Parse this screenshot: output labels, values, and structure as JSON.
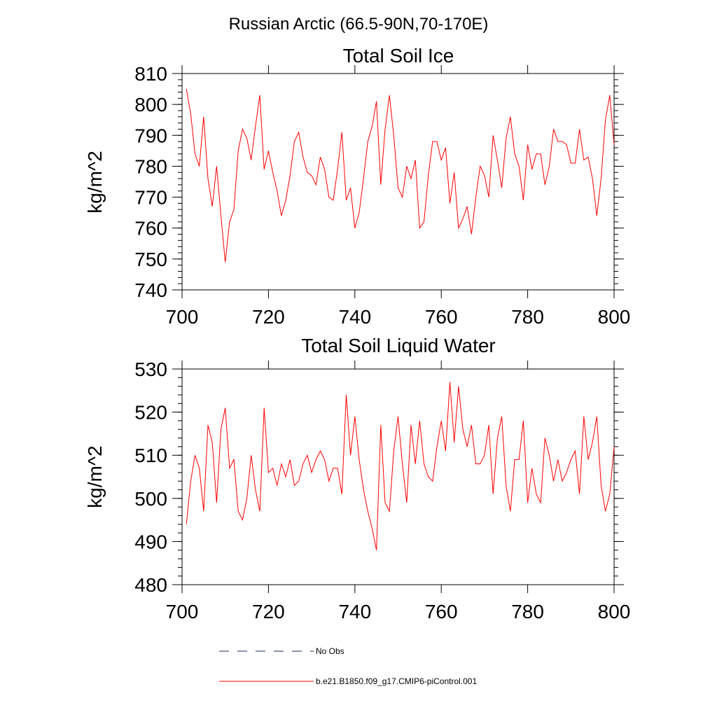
{
  "figure": {
    "title": "Russian Arctic (66.5-90N,70-170E)"
  },
  "chart_data": [
    {
      "type": "line",
      "title": "Total Soil Ice",
      "xlabel": "",
      "ylabel": "kg/m^2",
      "xlim": [
        700,
        800
      ],
      "ylim": [
        740,
        810
      ],
      "xticks": [
        700,
        720,
        740,
        760,
        780,
        800
      ],
      "yticks": [
        740,
        750,
        760,
        770,
        780,
        790,
        800,
        810
      ],
      "x_start": 701,
      "series": [
        {
          "name": "b.e21.B1850.f09_g17.CMIP6-piControl.001",
          "color": "#ff0000",
          "values": [
            805,
            797,
            784,
            780,
            796,
            776,
            767,
            780,
            764,
            749,
            762,
            766,
            785,
            792,
            789,
            782,
            793,
            803,
            779,
            785,
            778,
            772,
            764,
            769,
            777,
            788,
            791,
            783,
            778,
            777,
            774,
            783,
            779,
            770,
            769,
            779,
            791,
            769,
            773,
            760,
            765,
            776,
            788,
            793,
            801,
            774,
            792,
            803,
            790,
            773,
            770,
            780,
            776,
            782,
            760,
            762,
            777,
            788,
            788,
            782,
            786,
            768,
            778,
            760,
            763,
            767,
            758,
            770,
            780,
            777,
            770,
            790,
            782,
            773,
            789,
            796,
            784,
            780,
            769,
            787,
            779,
            784,
            784,
            774,
            780,
            792,
            788,
            788,
            787,
            781,
            781,
            792,
            782,
            783,
            776,
            764,
            776,
            795,
            803,
            787
          ]
        }
      ]
    },
    {
      "type": "line",
      "title": "Total Soil Liquid Water",
      "xlabel": "",
      "ylabel": "kg/m^2",
      "xlim": [
        700,
        800
      ],
      "ylim": [
        480,
        530
      ],
      "xticks": [
        700,
        720,
        740,
        760,
        780,
        800
      ],
      "yticks": [
        480,
        490,
        500,
        510,
        520,
        530
      ],
      "x_start": 701,
      "series": [
        {
          "name": "b.e21.B1850.f09_g17.CMIP6-piControl.001",
          "color": "#ff0000",
          "values": [
            494,
            504,
            510,
            507,
            497,
            517,
            513,
            499,
            516,
            521,
            507,
            509,
            497,
            495,
            500,
            510,
            502,
            497,
            521,
            506,
            507,
            503,
            508,
            505,
            509,
            503,
            504,
            508,
            510,
            506,
            509,
            511,
            509,
            504,
            507,
            507,
            501,
            524,
            510,
            519,
            509,
            502,
            497,
            493,
            488,
            517,
            499,
            497,
            511,
            519,
            508,
            499,
            517,
            508,
            518,
            508,
            505,
            504,
            512,
            518,
            511,
            527,
            513,
            526,
            516,
            512,
            517,
            508,
            508,
            510,
            517,
            501,
            514,
            519,
            503,
            497,
            509,
            509,
            518,
            499,
            507,
            501,
            499,
            514,
            510,
            504,
            509,
            504,
            506,
            509,
            511,
            501,
            519,
            509,
            513,
            519,
            503,
            497,
            501,
            512
          ]
        }
      ]
    }
  ],
  "legend": {
    "entries": [
      {
        "label": "No Obs",
        "color": "#1e2a5a",
        "style": "dashed"
      },
      {
        "label": "b.e21.B1850.f09_g17.CMIP6-piControl.001",
        "color": "#ff0000",
        "style": "solid"
      }
    ]
  }
}
